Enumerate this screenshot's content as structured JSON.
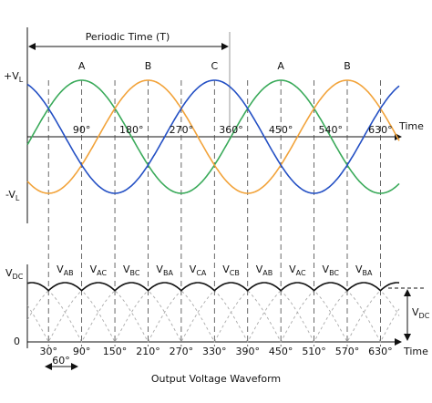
{
  "top": {
    "period_label": "Periodic Time (T)",
    "y_pos": {
      "main": "+V",
      "sub": "L"
    },
    "y_neg": {
      "main": "-V",
      "sub": "L"
    },
    "axis_label": "Time",
    "phase_labels": [
      "A",
      "B",
      "C",
      "A",
      "B"
    ],
    "ticks": [
      "90°",
      "180°",
      "270°",
      "360°",
      "450°",
      "540°",
      "630°"
    ]
  },
  "bottom": {
    "y_top": {
      "main": "V",
      "sub": "DC"
    },
    "y_zero": "0",
    "axis_label": "Time",
    "segment_labels": [
      {
        "main": "V",
        "sub": "AB"
      },
      {
        "main": "V",
        "sub": "AC"
      },
      {
        "main": "V",
        "sub": "BC"
      },
      {
        "main": "V",
        "sub": "BA"
      },
      {
        "main": "V",
        "sub": "CA"
      },
      {
        "main": "V",
        "sub": "CB"
      },
      {
        "main": "V",
        "sub": "AB"
      },
      {
        "main": "V",
        "sub": "AC"
      },
      {
        "main": "V",
        "sub": "BC"
      },
      {
        "main": "V",
        "sub": "BA"
      }
    ],
    "ticks": [
      "30°",
      "90°",
      "150°",
      "210°",
      "270°",
      "330°",
      "390°",
      "450°",
      "510°",
      "570°",
      "630°"
    ],
    "dc_label": {
      "main": "V",
      "sub": "DC"
    },
    "interval_label": "60°",
    "caption": "Output Voltage Waveform"
  }
}
